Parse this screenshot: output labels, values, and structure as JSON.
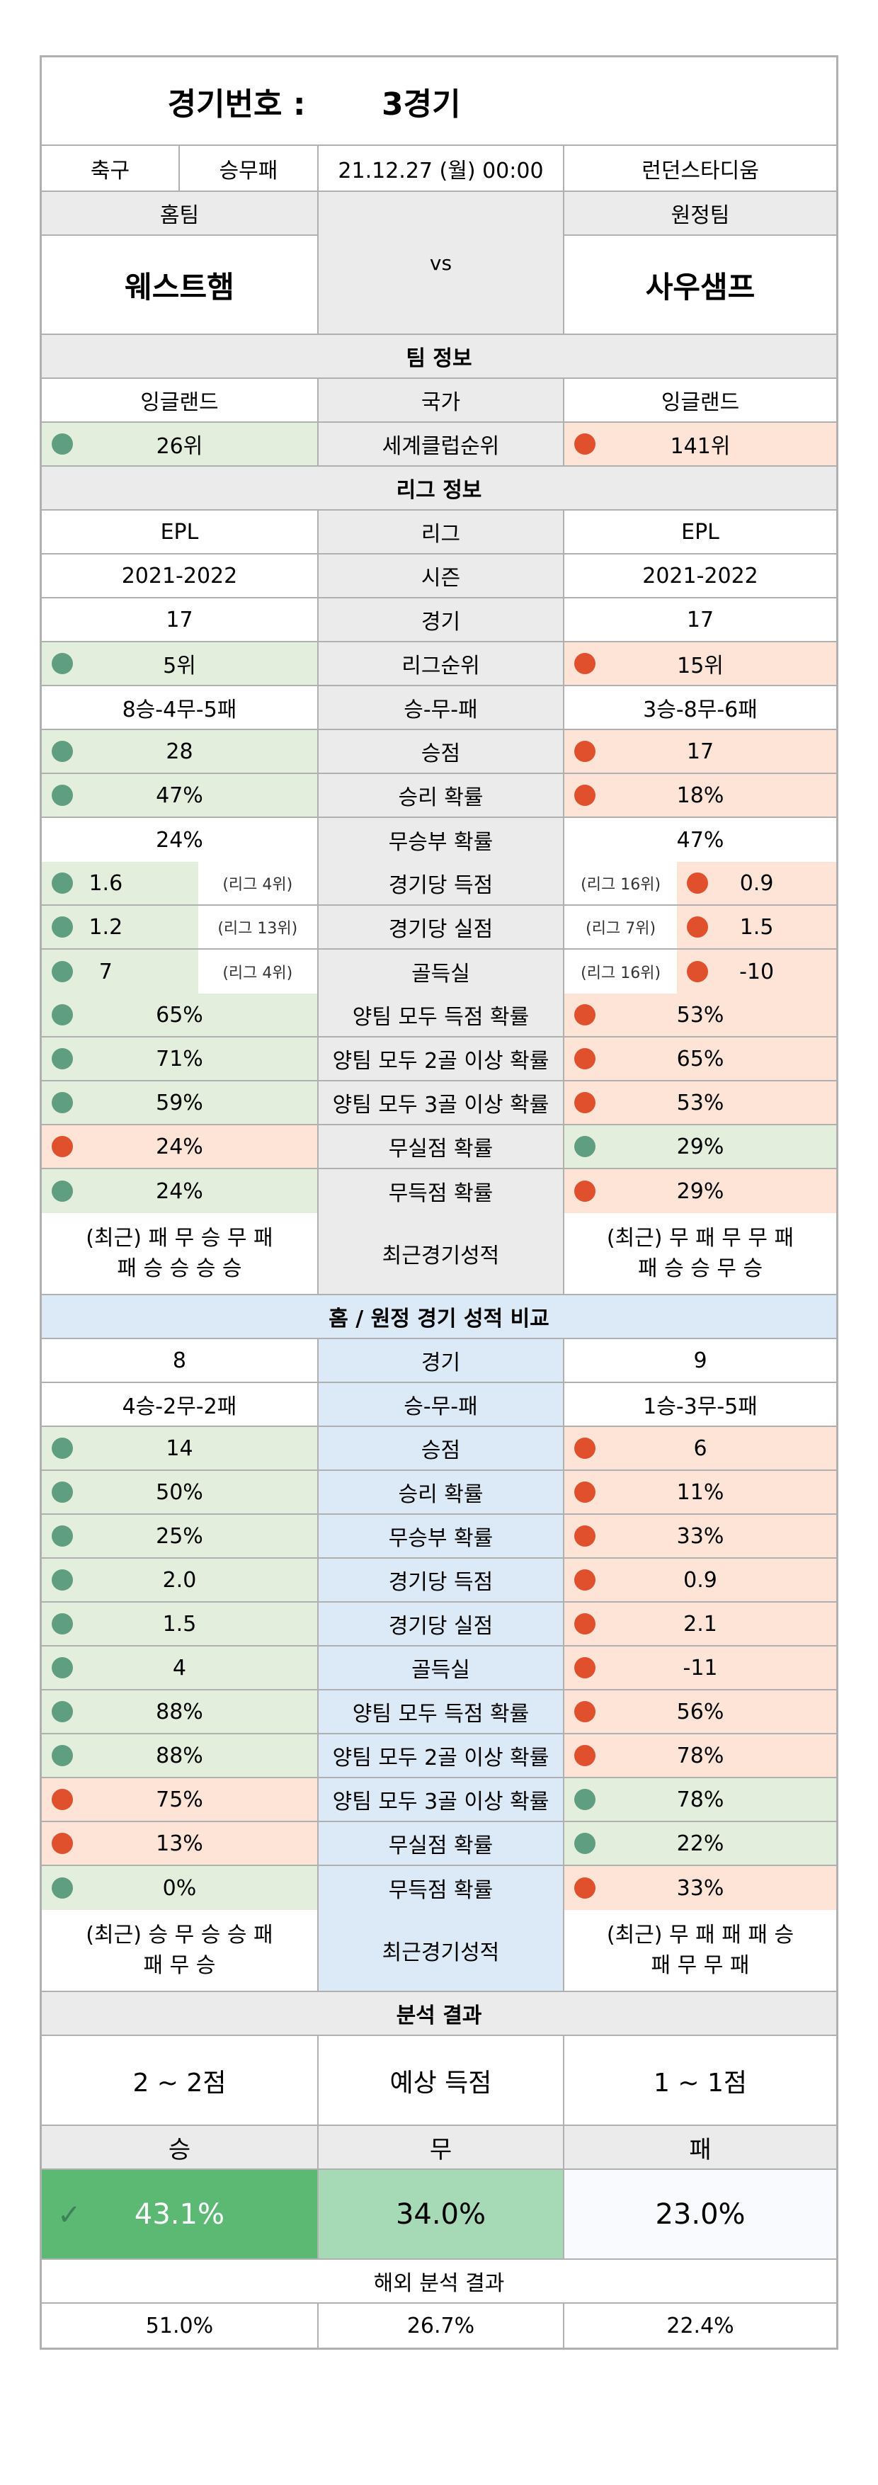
{
  "header": {
    "label": "경기번호 :",
    "value": "3경기"
  },
  "meta": {
    "sport": "축구",
    "type": "승무패",
    "datetime": "21.12.27 (월) 00:00",
    "venue": "런던스타디움"
  },
  "teams": {
    "home_label": "홈팀",
    "away_label": "원정팀",
    "home": "웨스트햄",
    "away": "사우샘프",
    "vs": "vs"
  },
  "team_info": {
    "title": "팀 정보",
    "country": {
      "home": "잉글랜드",
      "label": "국가",
      "away": "잉글랜드"
    },
    "club_rank": {
      "home": "26위",
      "label": "세계클럽순위",
      "away": "141위"
    }
  },
  "league_info": {
    "title": "리그 정보",
    "rows": [
      {
        "home": "EPL",
        "label": "리그",
        "away": "EPL"
      },
      {
        "home": "2021-2022",
        "label": "시즌",
        "away": "2021-2022"
      },
      {
        "home": "17",
        "label": "경기",
        "away": "17"
      },
      {
        "home": "5위",
        "label": "리그순위",
        "away": "15위",
        "hc": "g",
        "ac": "r",
        "hd": "green",
        "ad": "red"
      },
      {
        "home": "8승-4무-5패",
        "label": "승-무-패",
        "away": "3승-8무-6패"
      },
      {
        "home": "28",
        "label": "승점",
        "away": "17",
        "hc": "g",
        "ac": "r",
        "hd": "green",
        "ad": "red"
      },
      {
        "home": "47%",
        "label": "승리 확률",
        "away": "18%",
        "hc": "g",
        "ac": "r",
        "hd": "green",
        "ad": "red"
      },
      {
        "home": "24%",
        "label": "무승부 확률",
        "away": "47%"
      }
    ],
    "rank_rows": [
      {
        "home": "1.6",
        "home_rank": "(리그 4위)",
        "label": "경기당 득점",
        "away_rank": "(리그 16위)",
        "away": "0.9"
      },
      {
        "home": "1.2",
        "home_rank": "(리그 13위)",
        "label": "경기당 실점",
        "away_rank": "(리그 7위)",
        "away": "1.5"
      },
      {
        "home": "7",
        "home_rank": "(리그 4위)",
        "label": "골득실",
        "away_rank": "(리그 16위)",
        "away": "-10"
      }
    ],
    "rows2": [
      {
        "home": "65%",
        "label": "양팀 모두 득점 확률",
        "away": "53%",
        "hc": "g",
        "ac": "r",
        "hd": "green",
        "ad": "red"
      },
      {
        "home": "71%",
        "label": "양팀 모두 2골 이상 확률",
        "away": "65%",
        "hc": "g",
        "ac": "r",
        "hd": "green",
        "ad": "red"
      },
      {
        "home": "59%",
        "label": "양팀 모두 3골 이상 확률",
        "away": "53%",
        "hc": "g",
        "ac": "r",
        "hd": "green",
        "ad": "red"
      },
      {
        "home": "24%",
        "label": "무실점 확률",
        "away": "29%",
        "hc": "r",
        "ac": "g",
        "hd": "red",
        "ad": "green"
      },
      {
        "home": "24%",
        "label": "무득점 확률",
        "away": "29%",
        "hc": "g",
        "ac": "r",
        "hd": "green",
        "ad": "red"
      }
    ],
    "recent": {
      "home_l1": "(최근) 패 무 승 무 패",
      "home_l2": "패 승 승 승 승",
      "label": "최근경기성적",
      "away_l1": "(최근) 무 패 무 무 패",
      "away_l2": "패 승 승 무 승"
    }
  },
  "homeaway": {
    "title": "홈 / 원정 경기 성적 비교",
    "rows": [
      {
        "home": "8",
        "label": "경기",
        "away": "9"
      },
      {
        "home": "4승-2무-2패",
        "label": "승-무-패",
        "away": "1승-3무-5패"
      },
      {
        "home": "14",
        "label": "승점",
        "away": "6",
        "hc": "g",
        "ac": "r",
        "hd": "green",
        "ad": "red"
      },
      {
        "home": "50%",
        "label": "승리 확률",
        "away": "11%",
        "hc": "g",
        "ac": "r",
        "hd": "green",
        "ad": "red"
      },
      {
        "home": "25%",
        "label": "무승부 확률",
        "away": "33%",
        "hc": "g",
        "ac": "r",
        "hd": "green",
        "ad": "red"
      },
      {
        "home": "2.0",
        "label": "경기당 득점",
        "away": "0.9",
        "hc": "g",
        "ac": "r",
        "hd": "green",
        "ad": "red"
      },
      {
        "home": "1.5",
        "label": "경기당 실점",
        "away": "2.1",
        "hc": "g",
        "ac": "r",
        "hd": "green",
        "ad": "red"
      },
      {
        "home": "4",
        "label": "골득실",
        "away": "-11",
        "hc": "g",
        "ac": "r",
        "hd": "green",
        "ad": "red"
      },
      {
        "home": "88%",
        "label": "양팀 모두 득점 확률",
        "away": "56%",
        "hc": "g",
        "ac": "r",
        "hd": "green",
        "ad": "red"
      },
      {
        "home": "88%",
        "label": "양팀 모두 2골 이상 확률",
        "away": "78%",
        "hc": "g",
        "ac": "r",
        "hd": "green",
        "ad": "red"
      },
      {
        "home": "75%",
        "label": "양팀 모두 3골 이상 확률",
        "away": "78%",
        "hc": "r",
        "ac": "g",
        "hd": "red",
        "ad": "green"
      },
      {
        "home": "13%",
        "label": "무실점 확률",
        "away": "22%",
        "hc": "r",
        "ac": "g",
        "hd": "red",
        "ad": "green"
      },
      {
        "home": "0%",
        "label": "무득점 확률",
        "away": "33%",
        "hc": "g",
        "ac": "r",
        "hd": "green",
        "ad": "red"
      }
    ],
    "recent": {
      "home_l1": "(최근) 승 무 승 승 패",
      "home_l2": "패 무 승",
      "label": "최근경기성적",
      "away_l1": "(최근) 무 패 패 패 승",
      "away_l2": "패 무 무 패"
    }
  },
  "analysis": {
    "title": "분석 결과",
    "home_score": "2 ~ 2점",
    "score_label": "예상 득점",
    "away_score": "1 ~ 1점",
    "win_label": "승",
    "draw_label": "무",
    "loss_label": "패",
    "win_pct": "43.1%",
    "draw_pct": "34.0%",
    "loss_pct": "23.0%",
    "overseas_title": "해외 분석 결과",
    "overseas_win": "51.0%",
    "overseas_draw": "26.7%",
    "overseas_loss": "22.4%",
    "colors": {
      "win": "#5bb974",
      "draw": "#a6d9b5",
      "loss": "#f9fafe"
    }
  },
  "colors": {
    "good": "#e3efdc",
    "bad": "#fde4d7",
    "dot_good": "#5f9e80",
    "dot_bad": "#e0502c",
    "label_bg": "#ebebeb",
    "compare_bg": "#dce9f6"
  }
}
